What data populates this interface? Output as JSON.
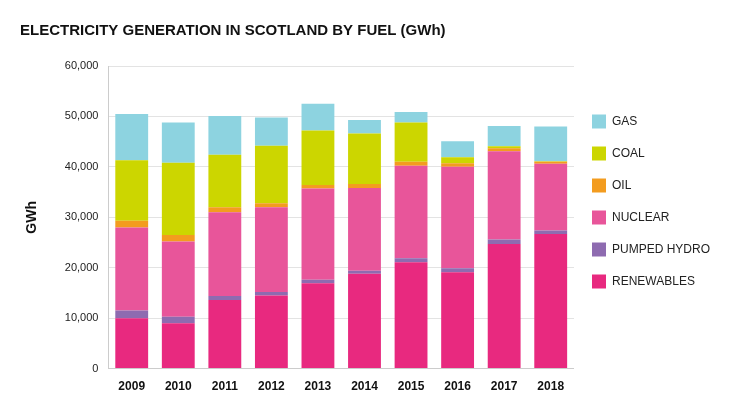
{
  "chart_data": {
    "type": "bar",
    "title": "ELECTRICITY GENERATION IN SCOTLAND BY FUEL (GWh)",
    "y_label": "GWh",
    "categories": [
      "2009",
      "2010",
      "2011",
      "2012",
      "2013",
      "2014",
      "2015",
      "2016",
      "2017",
      "2018"
    ],
    "stacked": true,
    "grid": true,
    "legend": "right",
    "ylim": [
      0,
      60000
    ],
    "yticks": [
      0,
      {
        "value": 10000,
        "label": "10,000"
      },
      {
        "value": 20000,
        "label": "20,000"
      },
      {
        "value": 30000,
        "label": "30,000"
      },
      {
        "value": 40000,
        "label": "40,000"
      },
      {
        "value": 50000,
        "label": "50,000"
      },
      {
        "value": 60000,
        "label": "60,000"
      }
    ],
    "series": [
      {
        "name": "RENEWABLES",
        "color": "#e8297f",
        "values": [
          10000,
          9000,
          13600,
          14500,
          16900,
          18800,
          21100,
          19100,
          24700,
          26700
        ]
      },
      {
        "name": "PUMPED HYDRO",
        "color": "#8e6bb0",
        "values": [
          1500,
          1300,
          800,
          700,
          700,
          600,
          800,
          800,
          900,
          700
        ]
      },
      {
        "name": "NUCLEAR",
        "color": "#e8559a",
        "values": [
          16500,
          14900,
          16600,
          16800,
          18100,
          16400,
          18300,
          20100,
          17500,
          13200
        ]
      },
      {
        "name": "OIL",
        "color": "#f39c1f",
        "values": [
          1300,
          1300,
          1000,
          800,
          700,
          800,
          800,
          700,
          600,
          400
        ]
      },
      {
        "name": "COAL",
        "color": "#ccd600",
        "values": [
          12000,
          14300,
          10400,
          11400,
          10800,
          10000,
          7800,
          1200,
          400,
          100
        ]
      },
      {
        "name": "GAS",
        "color": "#8dd3e0",
        "values": [
          9200,
          8000,
          7700,
          5600,
          5300,
          2700,
          2100,
          3200,
          4000,
          6900
        ]
      }
    ]
  }
}
